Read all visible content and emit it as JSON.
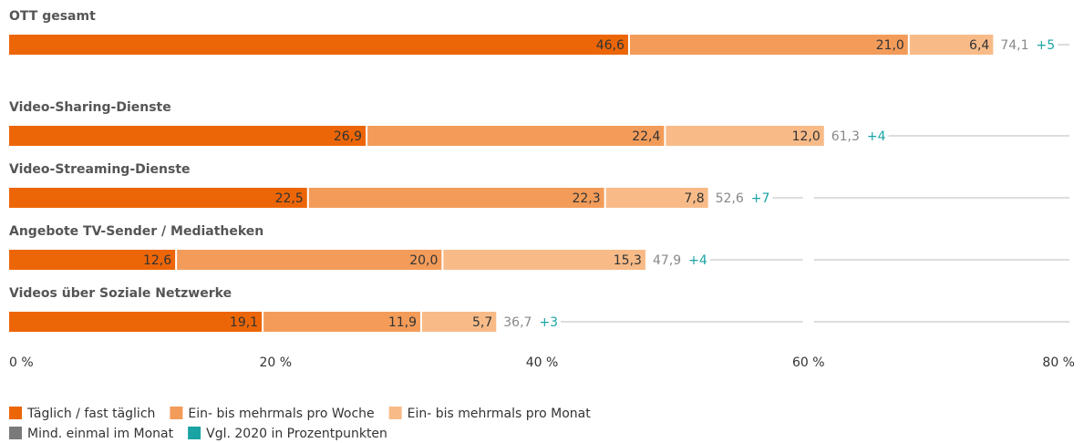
{
  "chart_data": {
    "type": "stacked-bar-horizontal",
    "categories": [
      "OTT gesamt",
      "Video-Sharing-Dienste",
      "Video-Streaming-Dienste",
      "Angebote TV-Sender / Mediatheken",
      "Videos über Soziale Netzwerke"
    ],
    "series": [
      {
        "name": "Täglich / fast täglich",
        "color": "#ec6608",
        "values": [
          46.6,
          26.9,
          22.5,
          12.6,
          19.1
        ],
        "value_labels": [
          "46,6",
          "26,9",
          "22,5",
          "12,6",
          "19,1"
        ]
      },
      {
        "name": "Ein- bis mehrmals pro Woche",
        "color": "#f39c5a",
        "values": [
          21.0,
          22.4,
          22.3,
          20.0,
          11.9
        ],
        "value_labels": [
          "21,0",
          "22,4",
          "22,3",
          "20,0",
          "11,9"
        ]
      },
      {
        "name": "Ein- bis mehrmals pro Monat",
        "color": "#f8bb88",
        "values": [
          6.4,
          12.0,
          7.8,
          15.3,
          5.7
        ],
        "value_labels": [
          "6,4",
          "12,0",
          "7,8",
          "15,3",
          "5,7"
        ]
      }
    ],
    "totals": {
      "name": "Mind. einmal im Monat",
      "color": "#7a7a7a",
      "values": [
        74.1,
        61.3,
        52.6,
        47.9,
        36.7
      ],
      "value_labels": [
        "74,1",
        "61,3",
        "52,6",
        "47,9",
        "36,7"
      ]
    },
    "changes": {
      "name": "Vgl. 2020 in Prozentpunkten",
      "color": "#1aa3a3",
      "values": [
        5,
        4,
        7,
        4,
        3
      ],
      "value_labels": [
        "+5",
        "+4",
        "+7",
        "+4",
        "+3"
      ]
    },
    "xlim": [
      0,
      80
    ],
    "xticks": [
      {
        "value": 0,
        "label": "0 %"
      },
      {
        "value": 20,
        "label": "20 %"
      },
      {
        "value": 40,
        "label": "40 %"
      },
      {
        "value": 60,
        "label": "60 %"
      },
      {
        "value": 80,
        "label": "80 %"
      }
    ]
  }
}
